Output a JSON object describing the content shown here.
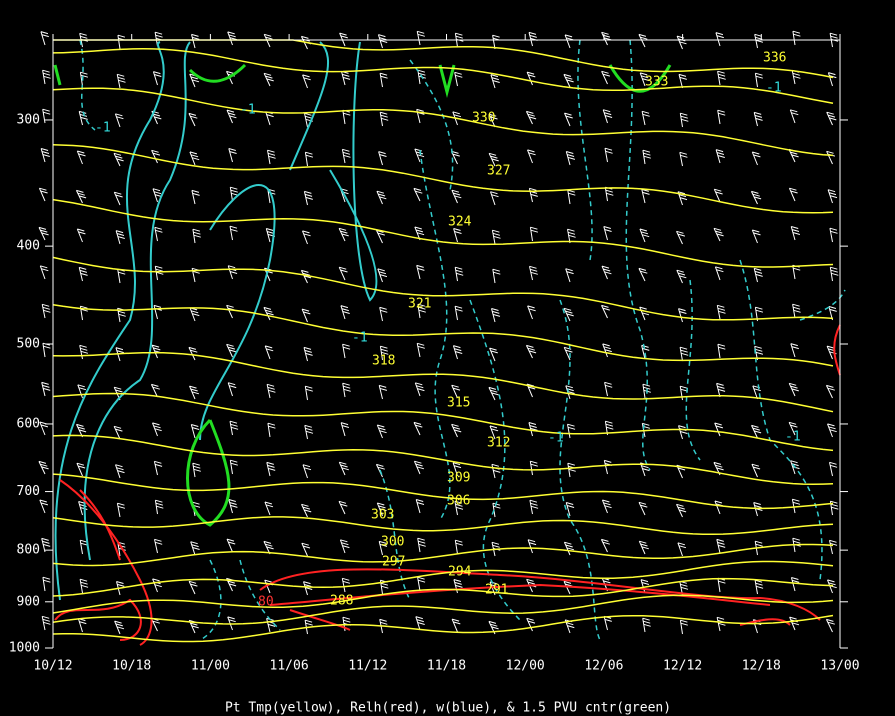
{
  "chart_data": {
    "type": "contour",
    "caption": "Pt Tmp(yellow), Relh(red), w(blue), & 1.5 PVU cntr(green)",
    "categories": [
      "10/12",
      "10/18",
      "11/00",
      "11/06",
      "11/12",
      "11/18",
      "12/00",
      "12/06",
      "12/12",
      "12/18",
      "13/00"
    ],
    "ylim": [
      1000,
      250
    ],
    "yticks": [
      300,
      400,
      500,
      600,
      700,
      800,
      900,
      1000
    ],
    "log_scale": true,
    "isentropes": {
      "color": "#ffff33",
      "levels": [
        336,
        333,
        330,
        327,
        324,
        321,
        318,
        315,
        312,
        309,
        306,
        303,
        300,
        297,
        294,
        291,
        288
      ]
    },
    "w_labels": [
      -1,
      -1,
      -1,
      -1,
      -1,
      -1
    ],
    "relh_labels": [
      80
    ]
  }
}
